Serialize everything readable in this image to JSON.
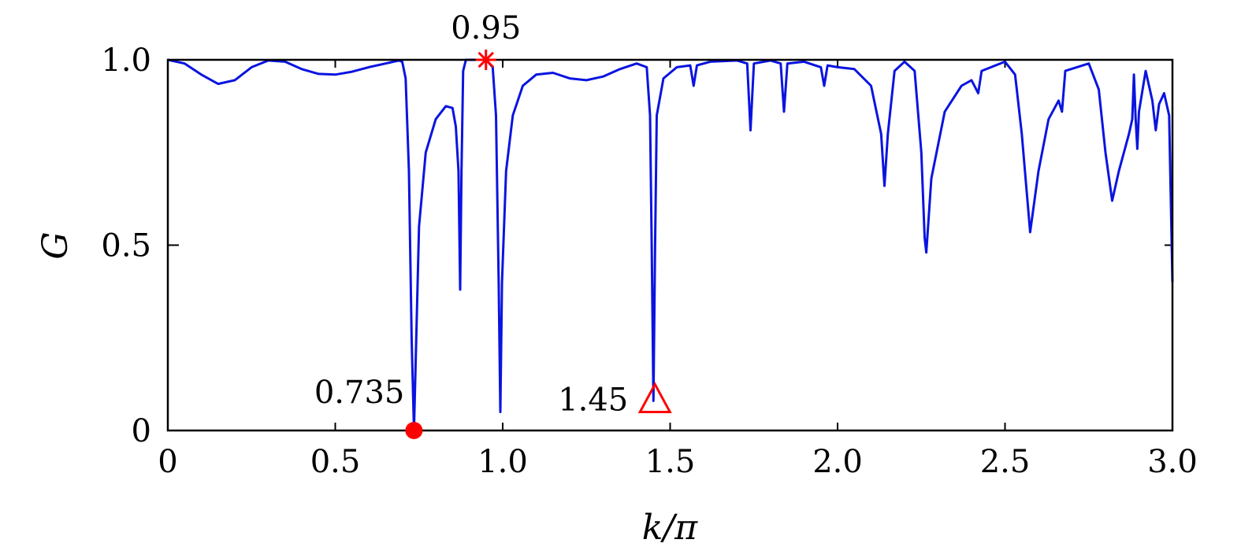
{
  "chart_data": {
    "type": "line",
    "xlabel": "k/π",
    "ylabel": "G",
    "xlim": [
      0,
      3.0
    ],
    "ylim": [
      0,
      1.0
    ],
    "x_ticks": [
      "0",
      "0.5",
      "1.0",
      "1.5",
      "2.0",
      "2.5",
      "3.0"
    ],
    "y_ticks": [
      "0",
      "0.5",
      "1.0"
    ],
    "grid": false,
    "series": [
      {
        "color": "#0a14e0",
        "points": [
          [
            0.0,
            1.0
          ],
          [
            0.05,
            0.99
          ],
          [
            0.1,
            0.96
          ],
          [
            0.15,
            0.935
          ],
          [
            0.2,
            0.945
          ],
          [
            0.25,
            0.98
          ],
          [
            0.3,
            0.998
          ],
          [
            0.35,
            0.995
          ],
          [
            0.4,
            0.975
          ],
          [
            0.45,
            0.962
          ],
          [
            0.5,
            0.96
          ],
          [
            0.55,
            0.968
          ],
          [
            0.6,
            0.98
          ],
          [
            0.65,
            0.99
          ],
          [
            0.69,
            0.998
          ],
          [
            0.7,
            0.995
          ],
          [
            0.71,
            0.95
          ],
          [
            0.72,
            0.7
          ],
          [
            0.728,
            0.25
          ],
          [
            0.735,
            0.0
          ],
          [
            0.742,
            0.25
          ],
          [
            0.75,
            0.55
          ],
          [
            0.77,
            0.75
          ],
          [
            0.8,
            0.84
          ],
          [
            0.83,
            0.875
          ],
          [
            0.85,
            0.87
          ],
          [
            0.86,
            0.82
          ],
          [
            0.868,
            0.7
          ],
          [
            0.873,
            0.38
          ],
          [
            0.877,
            0.7
          ],
          [
            0.882,
            0.97
          ],
          [
            0.89,
            1.0
          ],
          [
            0.95,
            1.0
          ],
          [
            0.97,
            0.98
          ],
          [
            0.98,
            0.85
          ],
          [
            0.988,
            0.4
          ],
          [
            0.993,
            0.05
          ],
          [
            0.998,
            0.4
          ],
          [
            1.01,
            0.7
          ],
          [
            1.03,
            0.85
          ],
          [
            1.06,
            0.93
          ],
          [
            1.1,
            0.96
          ],
          [
            1.15,
            0.965
          ],
          [
            1.2,
            0.95
          ],
          [
            1.25,
            0.945
          ],
          [
            1.3,
            0.955
          ],
          [
            1.35,
            0.975
          ],
          [
            1.4,
            0.99
          ],
          [
            1.43,
            0.98
          ],
          [
            1.44,
            0.85
          ],
          [
            1.445,
            0.5
          ],
          [
            1.45,
            0.08
          ],
          [
            1.455,
            0.5
          ],
          [
            1.46,
            0.85
          ],
          [
            1.48,
            0.95
          ],
          [
            1.52,
            0.98
          ],
          [
            1.56,
            0.985
          ],
          [
            1.57,
            0.93
          ],
          [
            1.58,
            0.985
          ],
          [
            1.62,
            0.995
          ],
          [
            1.7,
            0.998
          ],
          [
            1.73,
            0.99
          ],
          [
            1.74,
            0.81
          ],
          [
            1.75,
            0.99
          ],
          [
            1.8,
            0.998
          ],
          [
            1.83,
            0.99
          ],
          [
            1.84,
            0.86
          ],
          [
            1.85,
            0.99
          ],
          [
            1.9,
            0.995
          ],
          [
            1.95,
            0.98
          ],
          [
            1.96,
            0.93
          ],
          [
            1.97,
            0.985
          ],
          [
            2.0,
            0.98
          ],
          [
            2.05,
            0.975
          ],
          [
            2.1,
            0.93
          ],
          [
            2.13,
            0.8
          ],
          [
            2.14,
            0.66
          ],
          [
            2.15,
            0.8
          ],
          [
            2.17,
            0.97
          ],
          [
            2.2,
            0.995
          ],
          [
            2.23,
            0.97
          ],
          [
            2.25,
            0.75
          ],
          [
            2.26,
            0.52
          ],
          [
            2.265,
            0.48
          ],
          [
            2.28,
            0.68
          ],
          [
            2.32,
            0.86
          ],
          [
            2.37,
            0.93
          ],
          [
            2.4,
            0.945
          ],
          [
            2.42,
            0.91
          ],
          [
            2.43,
            0.97
          ],
          [
            2.5,
            0.995
          ],
          [
            2.53,
            0.96
          ],
          [
            2.55,
            0.8
          ],
          [
            2.575,
            0.535
          ],
          [
            2.6,
            0.7
          ],
          [
            2.63,
            0.84
          ],
          [
            2.66,
            0.89
          ],
          [
            2.67,
            0.86
          ],
          [
            2.68,
            0.97
          ],
          [
            2.75,
            0.99
          ],
          [
            2.78,
            0.92
          ],
          [
            2.8,
            0.75
          ],
          [
            2.82,
            0.62
          ],
          [
            2.84,
            0.7
          ],
          [
            2.87,
            0.8
          ],
          [
            2.88,
            0.84
          ],
          [
            2.885,
            0.96
          ],
          [
            2.89,
            0.84
          ],
          [
            2.895,
            0.76
          ],
          [
            2.9,
            0.86
          ],
          [
            2.92,
            0.97
          ],
          [
            2.94,
            0.89
          ],
          [
            2.95,
            0.81
          ],
          [
            2.96,
            0.88
          ],
          [
            2.975,
            0.91
          ],
          [
            2.99,
            0.85
          ],
          [
            3.0,
            0.4
          ]
        ]
      }
    ],
    "markers": [
      {
        "x": 0.735,
        "y": 0.0,
        "shape": "circle",
        "color": "#ff0000",
        "label": "0.735"
      },
      {
        "x": 0.95,
        "y": 1.0,
        "shape": "asterisk",
        "color": "#ff0000",
        "label": "0.95"
      },
      {
        "x": 1.45,
        "y": 0.08,
        "shape": "triangle",
        "color": "#ff0000",
        "label": "1.45"
      }
    ]
  }
}
